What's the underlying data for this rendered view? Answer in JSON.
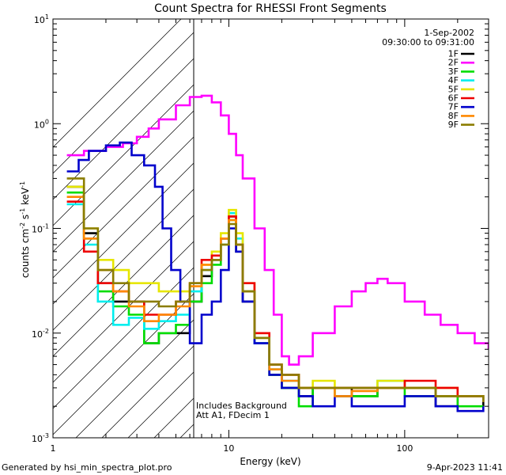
{
  "chart_data": {
    "type": "line",
    "title": "Count Spectra for RHESSI Front Segments",
    "xlabel": "Energy (keV)",
    "ylabel_parts": [
      "counts cm",
      "-2",
      " s",
      "-1",
      " keV",
      "-1"
    ],
    "xscale": "log",
    "yscale": "log",
    "xlim": [
      1,
      300
    ],
    "ylim": [
      0.001,
      10
    ],
    "x_ticks": [
      {
        "value": 1,
        "label": "1"
      },
      {
        "value": 10,
        "label": "10"
      },
      {
        "value": 100,
        "label": "100"
      }
    ],
    "y_ticks": [
      {
        "value": 0.001,
        "base": "10",
        "exp": "-3"
      },
      {
        "value": 0.01,
        "base": "10",
        "exp": "-2"
      },
      {
        "value": 0.1,
        "base": "10",
        "exp": "-1"
      },
      {
        "value": 1,
        "base": "10",
        "exp": "0"
      },
      {
        "value": 10,
        "base": "10",
        "exp": "1"
      }
    ],
    "date": "1-Sep-2002",
    "time_range": "09:30:00 to 09:31:00",
    "shaded_region_upper_keV": 6,
    "annotations": [
      "Includes Background",
      "Att A1, FDecim 1"
    ],
    "series": [
      {
        "name": "1F",
        "color": "#000000",
        "x": [
          1.2,
          1.5,
          1.8,
          2.2,
          2.7,
          3.3,
          4,
          5,
          6,
          7,
          8,
          9,
          10,
          11,
          12,
          14,
          17,
          20,
          25,
          30,
          40,
          50,
          70,
          100,
          150,
          200,
          280
        ],
        "y": [
          0.25,
          0.09,
          0.03,
          0.02,
          0.02,
          0.008,
          0.01,
          0.01,
          0.02,
          0.035,
          0.05,
          0.08,
          0.13,
          0.06,
          0.02,
          0.008,
          0.004,
          0.003,
          0.0025,
          0.003,
          0.003,
          0.0025,
          0.003,
          0.003,
          0.002,
          0.0025,
          0.002
        ]
      },
      {
        "name": "2F",
        "color": "#ff00ff",
        "x": [
          1.2,
          1.5,
          2,
          2.5,
          3,
          3.5,
          4,
          5,
          6,
          7,
          8,
          9,
          10,
          11,
          12,
          14,
          16,
          18,
          20,
          22,
          25,
          30,
          40,
          50,
          60,
          70,
          80,
          100,
          130,
          160,
          200,
          250,
          300
        ],
        "y": [
          0.5,
          0.55,
          0.6,
          0.65,
          0.75,
          0.9,
          1.1,
          1.5,
          1.8,
          1.85,
          1.6,
          1.2,
          0.8,
          0.5,
          0.3,
          0.1,
          0.04,
          0.015,
          0.006,
          0.005,
          0.006,
          0.01,
          0.018,
          0.025,
          0.03,
          0.033,
          0.03,
          0.02,
          0.015,
          0.012,
          0.01,
          0.008,
          0.007
        ]
      },
      {
        "name": "3F",
        "color": "#00dd00",
        "x": [
          1.2,
          1.5,
          1.8,
          2.2,
          2.7,
          3.3,
          4,
          5,
          6,
          7,
          8,
          9,
          10,
          11,
          12,
          14,
          17,
          20,
          25,
          30,
          40,
          50,
          70,
          100,
          150,
          200,
          280
        ],
        "y": [
          0.22,
          0.08,
          0.025,
          0.018,
          0.015,
          0.008,
          0.01,
          0.012,
          0.02,
          0.03,
          0.045,
          0.07,
          0.12,
          0.07,
          0.025,
          0.009,
          0.004,
          0.003,
          0.002,
          0.003,
          0.0025,
          0.0025,
          0.003,
          0.0025,
          0.0025,
          0.002,
          0.002
        ]
      },
      {
        "name": "4F",
        "color": "#00eeee",
        "x": [
          1.2,
          1.5,
          1.8,
          2.2,
          2.7,
          3.3,
          4,
          5,
          6,
          7,
          8,
          9,
          10,
          11,
          12,
          14,
          17,
          20,
          25,
          30,
          40,
          50,
          70,
          100,
          150,
          200,
          280
        ],
        "y": [
          0.17,
          0.07,
          0.02,
          0.012,
          0.014,
          0.011,
          0.013,
          0.015,
          0.025,
          0.04,
          0.05,
          0.08,
          0.14,
          0.08,
          0.025,
          0.008,
          0.0045,
          0.0035,
          0.003,
          0.003,
          0.003,
          0.003,
          0.0035,
          0.003,
          0.0025,
          0.0025,
          0.0025
        ]
      },
      {
        "name": "5F",
        "color": "#e6e600",
        "x": [
          1.2,
          1.5,
          1.8,
          2.2,
          2.7,
          3.3,
          4,
          5,
          6,
          7,
          8,
          9,
          10,
          11,
          12,
          14,
          17,
          20,
          25,
          30,
          40,
          50,
          70,
          100,
          150,
          200,
          280
        ],
        "y": [
          0.25,
          0.1,
          0.05,
          0.04,
          0.03,
          0.03,
          0.025,
          0.025,
          0.03,
          0.045,
          0.06,
          0.09,
          0.15,
          0.09,
          0.03,
          0.01,
          0.005,
          0.004,
          0.003,
          0.0035,
          0.003,
          0.003,
          0.0035,
          0.003,
          0.003,
          0.0025,
          0.0025
        ]
      },
      {
        "name": "6F",
        "color": "#ee0000",
        "x": [
          1.2,
          1.5,
          1.8,
          2.2,
          2.7,
          3.3,
          4,
          5,
          6,
          7,
          8,
          9,
          10,
          11,
          12,
          14,
          17,
          20,
          25,
          30,
          40,
          50,
          70,
          100,
          150,
          200,
          280
        ],
        "y": [
          0.18,
          0.06,
          0.03,
          0.025,
          0.02,
          0.015,
          0.015,
          0.02,
          0.03,
          0.05,
          0.055,
          0.08,
          0.13,
          0.07,
          0.03,
          0.01,
          0.005,
          0.004,
          0.003,
          0.003,
          0.003,
          0.003,
          0.003,
          0.0035,
          0.003,
          0.0025,
          0.0025
        ]
      },
      {
        "name": "7F",
        "color": "#0000cc",
        "x": [
          1.2,
          1.4,
          1.6,
          2,
          2.4,
          2.8,
          3.3,
          3.8,
          4.2,
          4.7,
          5.3,
          6,
          7,
          8,
          9,
          10,
          11,
          12,
          14,
          17,
          20,
          25,
          30,
          40,
          50,
          70,
          100,
          150,
          200,
          280
        ],
        "y": [
          0.35,
          0.45,
          0.55,
          0.62,
          0.66,
          0.5,
          0.4,
          0.25,
          0.1,
          0.04,
          0.02,
          0.008,
          0.015,
          0.02,
          0.04,
          0.1,
          0.06,
          0.02,
          0.008,
          0.004,
          0.003,
          0.0025,
          0.002,
          0.0025,
          0.002,
          0.002,
          0.0025,
          0.002,
          0.0018,
          0.002
        ]
      },
      {
        "name": "8F",
        "color": "#ff8800",
        "x": [
          1.2,
          1.5,
          1.8,
          2.2,
          2.7,
          3.3,
          4,
          5,
          6,
          7,
          8,
          9,
          10,
          11,
          12,
          14,
          17,
          20,
          25,
          30,
          40,
          50,
          70,
          100,
          150,
          200,
          280
        ],
        "y": [
          0.2,
          0.08,
          0.04,
          0.025,
          0.018,
          0.013,
          0.015,
          0.018,
          0.028,
          0.045,
          0.05,
          0.08,
          0.12,
          0.07,
          0.025,
          0.009,
          0.0045,
          0.0035,
          0.003,
          0.003,
          0.0025,
          0.0028,
          0.003,
          0.003,
          0.0025,
          0.0025,
          0.0022
        ]
      },
      {
        "name": "9F",
        "color": "#8b7d00",
        "x": [
          1.2,
          1.5,
          1.8,
          2.2,
          2.7,
          3.3,
          4,
          5,
          6,
          7,
          8,
          9,
          10,
          11,
          12,
          14,
          17,
          20,
          25,
          30,
          40,
          50,
          70,
          100,
          150,
          200,
          280
        ],
        "y": [
          0.3,
          0.1,
          0.04,
          0.03,
          0.02,
          0.02,
          0.018,
          0.02,
          0.03,
          0.04,
          0.05,
          0.07,
          0.11,
          0.07,
          0.025,
          0.009,
          0.005,
          0.004,
          0.003,
          0.003,
          0.003,
          0.003,
          0.003,
          0.003,
          0.0025,
          0.0025,
          0.0022
        ]
      }
    ]
  },
  "footer": {
    "generated_by": "Generated by hsi_min_spectra_plot.pro",
    "timestamp": "9-Apr-2023 11:41"
  }
}
